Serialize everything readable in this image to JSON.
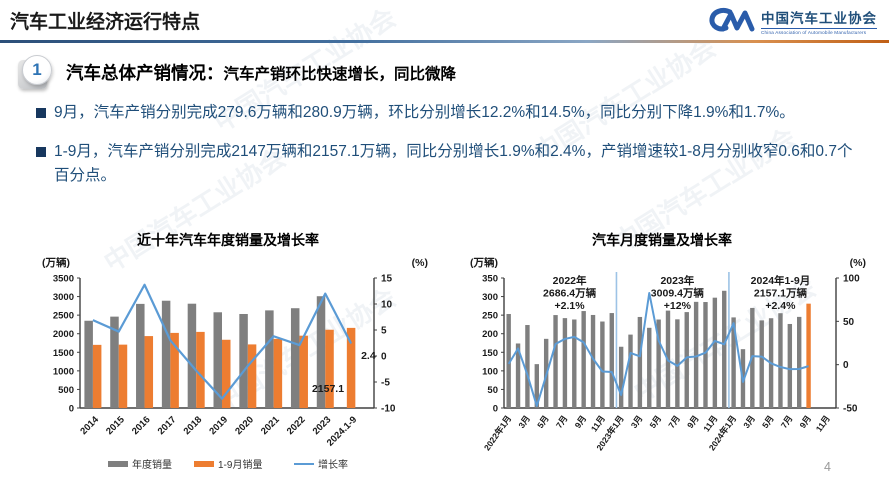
{
  "header": {
    "title": "汽车工业经济运行特点",
    "logo": {
      "name": "中国汽车工业协会",
      "subtitle": "China Association of Automobile Manufacturers"
    }
  },
  "section": {
    "number": "1",
    "heading_main": "汽车总体产销情况：",
    "heading_sub": "汽车产销环比快速增长，同比微降"
  },
  "bullets": [
    "9月，汽车产销分别完成279.6万辆和280.9万辆，环比分别增长12.2%和14.5%，同比分别下降1.9%和1.7%。",
    "1-9月，汽车产销分别完成2147万辆和2157.1万辆，同比分别增长1.9%和2.4%，产销增速较1-8月分别收窄0.6和0.7个百分点。"
  ],
  "footer": {
    "page_number": "4"
  },
  "watermark_text": "中国汽车工业协会",
  "colors": {
    "bar_gray": "#7f7f7f",
    "bar_orange": "#ED7D31",
    "line_blue": "#5B9BD5",
    "separator_blue": "#9DC3E6",
    "body_text": "#1F4E79",
    "axis": "#404040"
  },
  "chart_data": [
    {
      "type": "bar+line",
      "title": "近十年汽车年度销量及增长率",
      "left_axis": {
        "label": "(万辆)",
        "min": 0,
        "max": 3500,
        "step": 500
      },
      "right_axis": {
        "label": "(%)",
        "min": -10,
        "max": 15,
        "step": 5
      },
      "categories": [
        "2014",
        "2015",
        "2016",
        "2017",
        "2018",
        "2019",
        "2020",
        "2021",
        "2022",
        "2023",
        "2024.1-9"
      ],
      "series": [
        {
          "name": "年度销量",
          "type": "bar",
          "color": "#7f7f7f",
          "values": [
            2349,
            2460,
            2803,
            2888,
            2808,
            2577,
            2531,
            2628,
            2686.4,
            3009.4,
            null
          ]
        },
        {
          "name": "1-9月销量",
          "type": "bar",
          "color": "#ED7D31",
          "values": [
            1700,
            1706,
            1936,
            2022,
            2049,
            1837,
            1712,
            1862,
            1947,
            2107,
            2157.1
          ]
        },
        {
          "name": "增长率",
          "type": "line",
          "axis": "right",
          "color": "#5B9BD5",
          "values": [
            6.9,
            4.7,
            13.7,
            3.0,
            -2.8,
            -8.2,
            -1.9,
            3.8,
            2.1,
            12.0,
            2.4
          ]
        }
      ],
      "data_labels": {
        "last_growth": "2.4",
        "last_bar": "2157.1"
      },
      "legend": [
        "年度销量",
        "1-9月销量",
        "增长率"
      ],
      "grid": false,
      "legend_position": "bottom"
    },
    {
      "type": "bar+line",
      "title": "汽车月度销量及增长率",
      "left_axis": {
        "label": "(万辆)",
        "min": 0,
        "max": 350,
        "step": 50
      },
      "right_axis": {
        "label": "(%)",
        "min": -50,
        "max": 100,
        "step": 50
      },
      "x_tick_labels": [
        "2022年1月",
        "3月",
        "5月",
        "7月",
        "9月",
        "11月",
        "2023年1月",
        "3月",
        "5月",
        "7月",
        "9月",
        "11月",
        "2024年1月",
        "3月",
        "5月",
        "7月",
        "9月",
        "11月"
      ],
      "n_slots": 35,
      "values": [
        253.1,
        173.7,
        223.4,
        118.1,
        186.2,
        250.2,
        242.0,
        238.3,
        261.0,
        250.5,
        232.8,
        255.6,
        164.9,
        197.6,
        245.1,
        215.9,
        238.2,
        262.2,
        238.7,
        258.2,
        285.8,
        285.3,
        297.0,
        315.6,
        243.9,
        158.4,
        269.4,
        235.9,
        241.7,
        255.2,
        226.2,
        245.3,
        280.9
      ],
      "growth": [
        0.9,
        18.7,
        -11.7,
        -47.6,
        -12.6,
        23.8,
        29.7,
        32.1,
        25.7,
        6.9,
        -7.9,
        -8.4,
        -35.0,
        13.5,
        9.7,
        82.7,
        27.9,
        4.8,
        -1.4,
        8.4,
        9.5,
        13.8,
        27.4,
        23.5,
        47.9,
        -19.9,
        9.9,
        9.3,
        1.5,
        -2.7,
        -5.2,
        -5.0,
        -1.7
      ],
      "highlight_last_bar": true,
      "separator_indices": [
        12,
        24
      ],
      "annotations": [
        {
          "lines": [
            "2022年",
            "2686.4万辆",
            "+2.1%"
          ],
          "slot": 6.5
        },
        {
          "lines": [
            "2023年",
            "3009.4万辆",
            "+12%"
          ],
          "slot": 18
        },
        {
          "lines": [
            "2024年1-9月",
            "2157.1万辆",
            "+2.4%"
          ],
          "slot": 29
        }
      ],
      "grid": false
    }
  ]
}
